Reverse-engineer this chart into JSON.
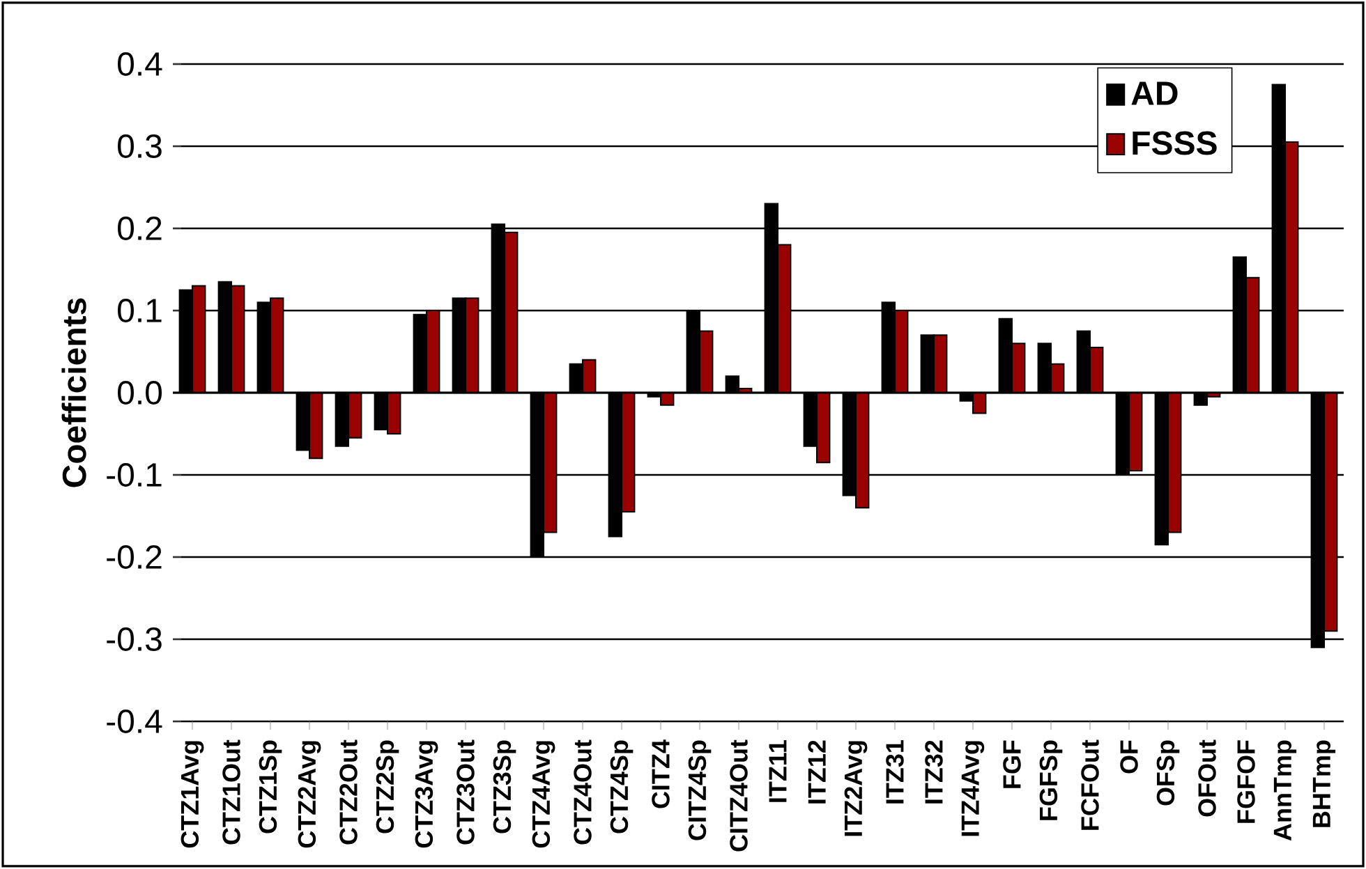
{
  "chart_data": {
    "type": "bar",
    "ylabel": "Coefficients",
    "categories": [
      "CTZ1Avg",
      "CTZ1Out",
      "CTZ1Sp",
      "CTZ2Avg",
      "CTZ2Out",
      "CTZ2Sp",
      "CTZ3Avg",
      "CTZ3Out",
      "CTZ3Sp",
      "CTZ4Avg",
      "CTZ4Out",
      "CTZ4Sp",
      "CITZ4",
      "CITZ4Sp",
      "CITZ4Out",
      "ITZ11",
      "ITZ12",
      "ITZ2Avg",
      "ITZ31",
      "ITZ32",
      "ITZ4Avg",
      "FGF",
      "FGFSp",
      "FCFOut",
      "OF",
      "OFSp",
      "OFOut",
      "FGFOF",
      "AnnTmp",
      "BHTmp"
    ],
    "series": [
      {
        "name": "AD",
        "color": "#000000",
        "values": [
          0.125,
          0.135,
          0.11,
          -0.07,
          -0.065,
          -0.045,
          0.095,
          0.115,
          0.205,
          -0.2,
          0.035,
          -0.175,
          -0.005,
          0.1,
          0.02,
          0.23,
          -0.065,
          -0.125,
          0.11,
          0.07,
          -0.01,
          0.09,
          0.06,
          0.075,
          -0.1,
          -0.185,
          -0.015,
          0.165,
          0.375,
          -0.31
        ]
      },
      {
        "name": "FSSS",
        "color": "#990000",
        "values": [
          0.13,
          0.13,
          0.115,
          -0.08,
          -0.055,
          -0.05,
          0.1,
          0.115,
          0.195,
          -0.17,
          0.04,
          -0.145,
          -0.015,
          0.075,
          0.005,
          0.18,
          -0.085,
          -0.14,
          0.1,
          0.07,
          -0.025,
          0.06,
          0.035,
          0.055,
          -0.095,
          -0.17,
          -0.005,
          0.14,
          0.305,
          -0.29
        ]
      }
    ],
    "ylim": [
      -0.4,
      0.4
    ],
    "yticks": [
      {
        "value": -0.4,
        "label": "-0.4"
      },
      {
        "value": -0.3,
        "label": "-0.3"
      },
      {
        "value": -0.2,
        "label": "-0.2"
      },
      {
        "value": -0.1,
        "label": "-0.1"
      },
      {
        "value": 0,
        "label": "0.0"
      },
      {
        "value": 0.1,
        "label": "0.1"
      },
      {
        "value": 0.2,
        "label": "0.2"
      },
      {
        "value": 0.3,
        "label": "0.3"
      },
      {
        "value": 0.4,
        "label": "0.4"
      }
    ],
    "grid": "y",
    "legend": "top right"
  }
}
